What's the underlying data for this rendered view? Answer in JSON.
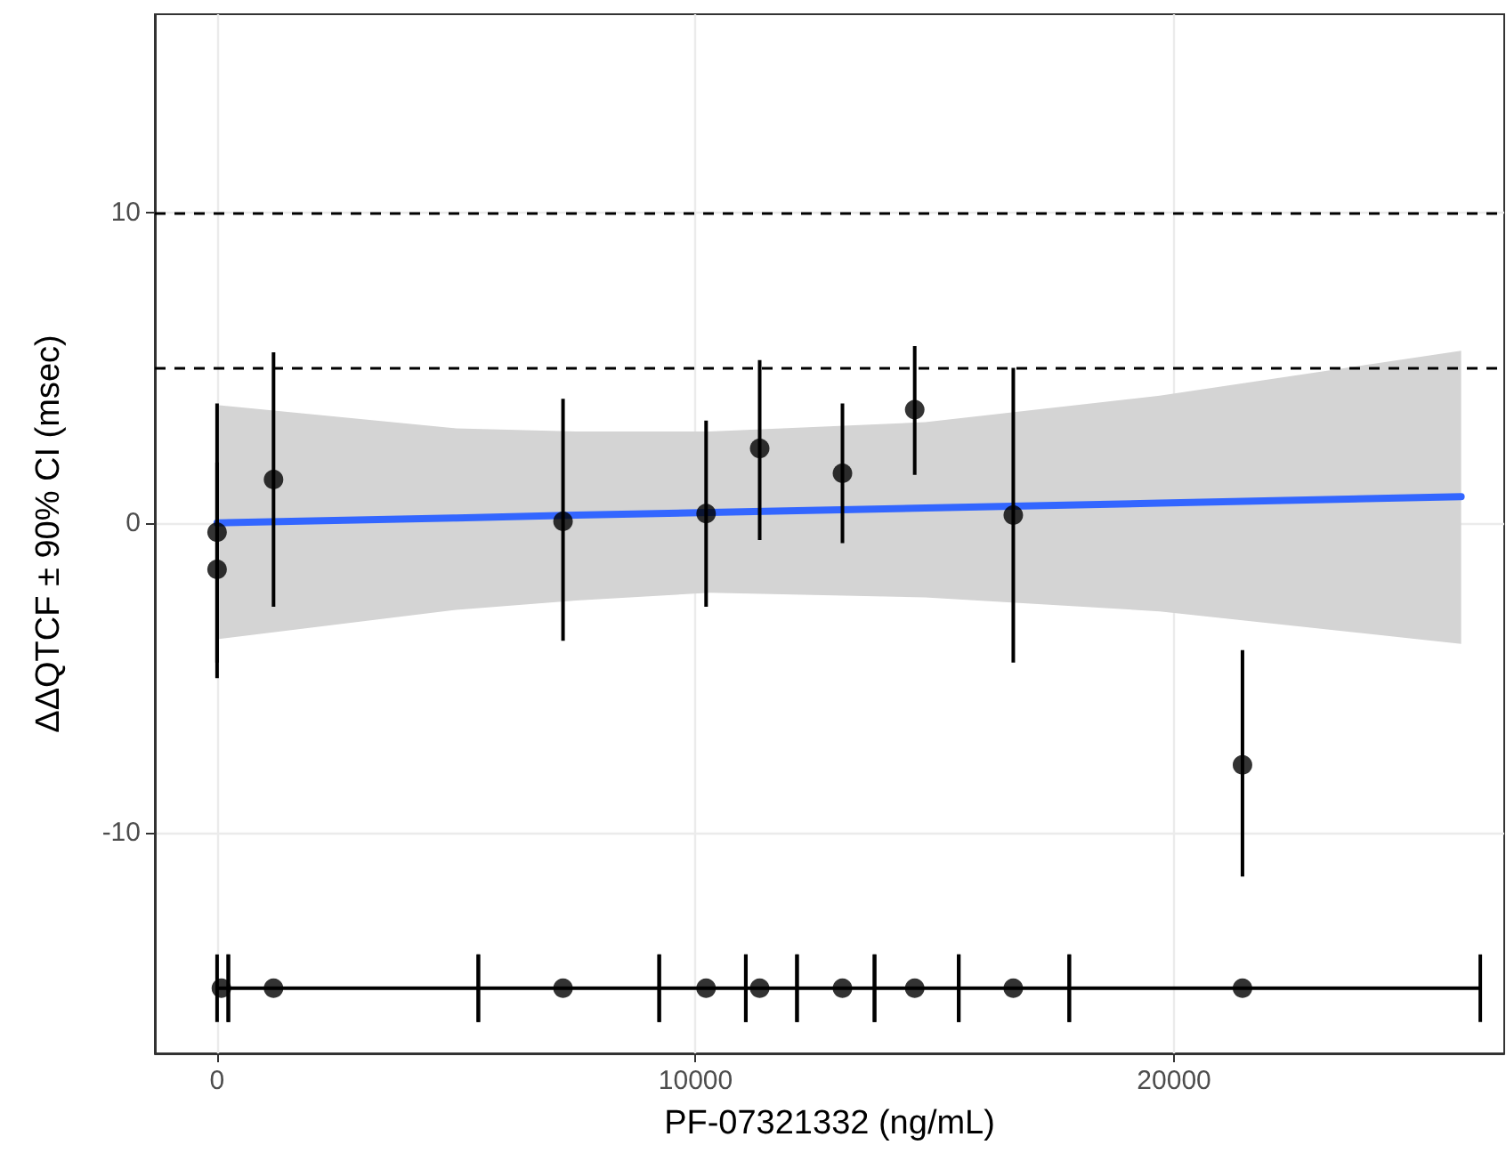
{
  "chart_data": {
    "type": "scatter",
    "xlabel": "PF-07321332 (ng/mL)",
    "ylabel": "ΔΔQTCF ± 90% CI (msec)",
    "xlim": [
      -1300,
      26900
    ],
    "ylim": [
      -17.1,
      16.4
    ],
    "xticks": [
      0,
      10000,
      20000
    ],
    "yticks": [
      -10,
      0,
      10
    ],
    "grid": true,
    "legend": false,
    "marker": "circle",
    "ref_lines": [
      {
        "axis": "y",
        "value": 10,
        "color": "#000000",
        "line_style": "dashed"
      },
      {
        "axis": "y",
        "value": 5,
        "color": "#000000",
        "line_style": "dashed"
      }
    ],
    "series": [
      {
        "color": "#000000",
        "x": [
          0,
          0,
          1180,
          7230,
          10220,
          11340,
          13070,
          14580,
          16640,
          21430
        ],
        "values": [
          -0.3,
          -1.5,
          1.4,
          0.05,
          0.3,
          2.4,
          1.6,
          3.65,
          0.25,
          -7.8
        ],
        "errors": [
          [
            -4.5,
            3.85
          ],
          [
            -5.0,
            1.95
          ],
          [
            -2.7,
            5.5
          ],
          [
            -3.8,
            4.0
          ],
          [
            -2.7,
            3.3
          ],
          [
            -0.55,
            5.25
          ],
          [
            -0.65,
            3.85
          ],
          [
            1.55,
            5.7
          ],
          [
            -4.5,
            5.0
          ],
          [
            -11.4,
            -4.1
          ]
        ]
      },
      {
        "color": "#000000",
        "x": [
          90,
          1180,
          7230,
          10220,
          11340,
          13070,
          14580,
          16640,
          21430
        ],
        "values": [
          -15,
          -15,
          -15,
          -15,
          -15,
          -15,
          -15,
          -15,
          -15
        ],
        "xerrors": [
          [
            0,
            235
          ],
          [
            235,
            5460
          ],
          [
            5460,
            9240
          ],
          [
            9240,
            11050
          ],
          [
            11050,
            12120
          ],
          [
            12120,
            13740
          ],
          [
            13740,
            15500
          ],
          [
            15500,
            17810
          ],
          [
            17810,
            26400
          ]
        ]
      },
      {
        "type": "line",
        "color": "#3366ff",
        "marker": "none",
        "x": [
          0,
          5000,
          7500,
          10300,
          14800,
          19700,
          26000
        ],
        "values": [
          0,
          0.16,
          0.25,
          0.34,
          0.48,
          0.64,
          0.85
        ],
        "lower": [
          -3.75,
          -2.8,
          -2.5,
          -2.25,
          -2.4,
          -2.85,
          -3.9
        ],
        "upper": [
          3.8,
          3.05,
          2.95,
          2.95,
          3.25,
          4.1,
          5.55
        ]
      }
    ]
  }
}
